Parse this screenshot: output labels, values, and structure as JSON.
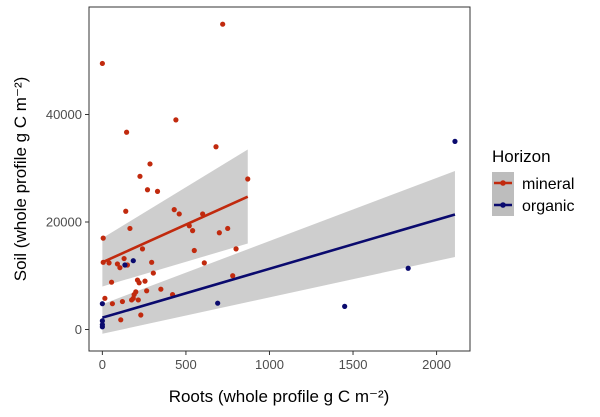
{
  "chart_data": {
    "type": "scatter",
    "title": "",
    "xlabel": "Roots (whole profile g C m⁻²)",
    "ylabel": "Soil (whole profile g C m⁻²)",
    "xlim": [
      -80,
      2200
    ],
    "ylim": [
      -4000,
      60000
    ],
    "x_ticks": [
      0,
      500,
      1000,
      1500,
      2000
    ],
    "y_ticks": [
      0,
      20000,
      40000
    ],
    "x_tick_labels": [
      "0",
      "500",
      "1000",
      "1500",
      "2000"
    ],
    "y_tick_labels": [
      "0",
      "20000",
      "40000"
    ],
    "grid": false,
    "legend": {
      "title": "Horizon",
      "position": "right"
    },
    "series": [
      {
        "name": "mineral",
        "color": "#c12a0e",
        "points": [
          [
            0,
            49500
          ],
          [
            5,
            17000
          ],
          [
            5,
            12500
          ],
          [
            15,
            5800
          ],
          [
            40,
            12400
          ],
          [
            55,
            8800
          ],
          [
            60,
            4800
          ],
          [
            90,
            12200
          ],
          [
            105,
            11500
          ],
          [
            110,
            1800
          ],
          [
            120,
            5200
          ],
          [
            130,
            13200
          ],
          [
            140,
            22000
          ],
          [
            145,
            36700
          ],
          [
            150,
            12000
          ],
          [
            165,
            18800
          ],
          [
            175,
            5500
          ],
          [
            185,
            5800
          ],
          [
            190,
            6500
          ],
          [
            200,
            7000
          ],
          [
            210,
            9200
          ],
          [
            215,
            5500
          ],
          [
            220,
            8700
          ],
          [
            225,
            28500
          ],
          [
            230,
            2700
          ],
          [
            240,
            15000
          ],
          [
            255,
            9000
          ],
          [
            265,
            7200
          ],
          [
            270,
            26000
          ],
          [
            285,
            30800
          ],
          [
            295,
            12500
          ],
          [
            305,
            10500
          ],
          [
            330,
            25700
          ],
          [
            350,
            7500
          ],
          [
            420,
            6500
          ],
          [
            430,
            22300
          ],
          [
            440,
            39000
          ],
          [
            460,
            21500
          ],
          [
            520,
            19300
          ],
          [
            540,
            18400
          ],
          [
            550,
            14700
          ],
          [
            600,
            21500
          ],
          [
            610,
            12400
          ],
          [
            680,
            34000
          ],
          [
            700,
            18000
          ],
          [
            720,
            56800
          ],
          [
            750,
            18800
          ],
          [
            780,
            10000
          ],
          [
            800,
            15000
          ],
          [
            870,
            28000
          ]
        ],
        "trend": {
          "x": [
            0,
            870
          ],
          "y": [
            12500,
            24700
          ],
          "ci_lower": [
            8000,
            16000
          ],
          "ci_upper": [
            17000,
            33500
          ]
        }
      },
      {
        "name": "organic",
        "color": "#0a0a6e",
        "points": [
          [
            0,
            1600
          ],
          [
            0,
            900
          ],
          [
            0,
            500
          ],
          [
            0,
            4800
          ],
          [
            135,
            12000
          ],
          [
            185,
            12800
          ],
          [
            690,
            4900
          ],
          [
            1450,
            4300
          ],
          [
            1830,
            11400
          ],
          [
            2110,
            35000
          ]
        ],
        "trend": {
          "x": [
            0,
            2110
          ],
          "y": [
            2200,
            21400
          ],
          "ci_lower": [
            -800,
            13500
          ],
          "ci_upper": [
            4700,
            29500
          ]
        }
      }
    ]
  },
  "colors": {
    "mineral": "#c12a0e",
    "organic": "#0a0a6e",
    "ribbon": "#bdbdbd",
    "axis": "#333333",
    "tick_text": "#4d4d4d"
  }
}
